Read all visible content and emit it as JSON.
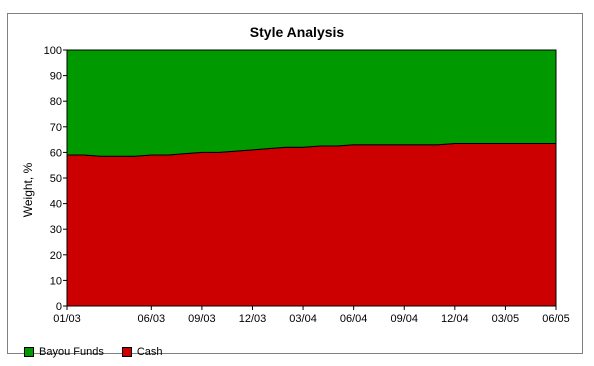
{
  "chart_data": {
    "type": "area",
    "stacked": true,
    "title": "Style Analysis",
    "ylabel": "Weight, %",
    "xlabel": "",
    "ylim": [
      0,
      100
    ],
    "yticks": [
      0,
      10,
      20,
      30,
      40,
      50,
      60,
      70,
      80,
      90,
      100
    ],
    "x": [
      "01/03",
      "02/03",
      "03/03",
      "04/03",
      "05/03",
      "06/03",
      "07/03",
      "08/03",
      "09/03",
      "10/03",
      "11/03",
      "12/03",
      "01/04",
      "02/04",
      "03/04",
      "04/04",
      "05/04",
      "06/04",
      "07/04",
      "08/04",
      "09/04",
      "10/04",
      "11/04",
      "12/04",
      "01/05",
      "02/05",
      "03/05",
      "04/05",
      "05/05",
      "06/05"
    ],
    "xtick_labels": [
      "01/03",
      "06/03",
      "09/03",
      "12/03",
      "03/04",
      "06/04",
      "09/04",
      "12/04",
      "03/05",
      "06/05"
    ],
    "series": [
      {
        "name": "Cash",
        "color": "#cc0000",
        "values": [
          59,
          59,
          58.5,
          58.5,
          58.5,
          59,
          59,
          59.5,
          60,
          60,
          60.5,
          61,
          61.5,
          62,
          62,
          62.5,
          62.5,
          63,
          63,
          63,
          63,
          63,
          63,
          63.5,
          63.5,
          63.5,
          63.5,
          63.5,
          63.5,
          63.5
        ]
      },
      {
        "name": "Bayou Funds",
        "color": "#009900",
        "values": [
          41,
          41,
          41.5,
          41.5,
          41.5,
          41,
          41,
          40.5,
          40,
          40,
          39.5,
          39,
          38.5,
          38,
          38,
          37.5,
          37.5,
          37,
          37,
          37,
          37,
          37,
          37,
          36.5,
          36.5,
          36.5,
          36.5,
          36.5,
          36.5,
          36.5
        ]
      }
    ],
    "legend": {
      "position": "bottom-left",
      "entries": [
        "Bayou Funds",
        "Cash"
      ]
    },
    "grid": false
  }
}
